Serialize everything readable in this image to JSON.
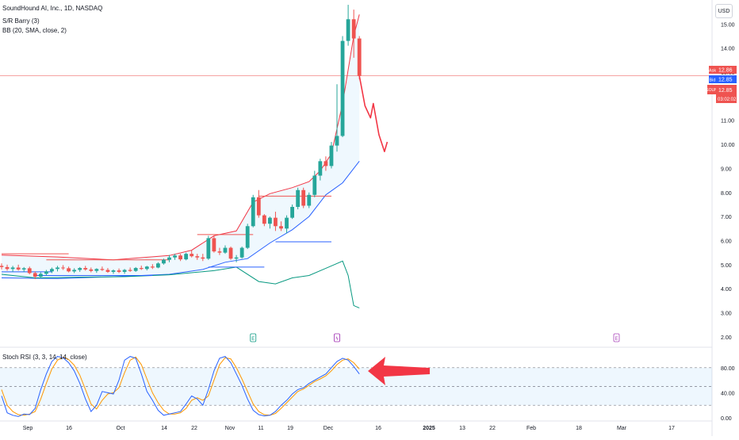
{
  "legend": {
    "symbol": "SoundHound AI, Inc., 1D, NASDAQ",
    "sr": "S/R Barry (3)",
    "bb": "BB (20, SMA, close, 2)"
  },
  "currency": "USD",
  "price_labels": {
    "ask_tag": "Ask",
    "ask": "12.86",
    "bid_tag": "Bid",
    "bid": "12.85",
    "symbol_tag": "SOUN",
    "last": "12.85",
    "countdown": "03:02:02"
  },
  "stoch_title": "Stoch RSI (3, 3, 14, 14, close)",
  "colors": {
    "up": "#26a69a",
    "down": "#ef5350",
    "bb_upper": "#f23645",
    "bb_lower": "#2962ff",
    "bb_fill": "#2196f3",
    "stoch_k": "#2962ff",
    "stoch_d": "#ff9800",
    "hline": "#ef5350",
    "annotation": "#f23645",
    "grid": "#f0f3fa"
  },
  "chart_data": [
    {
      "type": "candlestick",
      "title": "SoundHound AI, Inc., 1D, NASDAQ",
      "yaxis_ticks": [
        2.0,
        3.0,
        4.0,
        5.0,
        6.0,
        7.0,
        8.0,
        9.0,
        10.0,
        11.0,
        12.0,
        13.0,
        14.0,
        15.0
      ],
      "xaxis_ticks": [
        "Sep",
        "16",
        "Oct",
        "14",
        "22",
        "Nov",
        "11",
        "19",
        "Dec",
        "16",
        "2025",
        "13",
        "22",
        "Feb",
        "18",
        "Mar",
        "17"
      ],
      "candles": [
        {
          "o": 4.95,
          "h": 5.05,
          "l": 4.8,
          "c": 4.9
        },
        {
          "o": 4.9,
          "h": 5.0,
          "l": 4.75,
          "c": 4.82
        },
        {
          "o": 4.82,
          "h": 4.95,
          "l": 4.7,
          "c": 4.88
        },
        {
          "o": 4.88,
          "h": 5.0,
          "l": 4.75,
          "c": 4.8
        },
        {
          "o": 4.8,
          "h": 4.9,
          "l": 4.7,
          "c": 4.85
        },
        {
          "o": 4.85,
          "h": 4.92,
          "l": 4.6,
          "c": 4.65
        },
        {
          "o": 4.65,
          "h": 4.72,
          "l": 4.4,
          "c": 4.5
        },
        {
          "o": 4.5,
          "h": 4.68,
          "l": 4.45,
          "c": 4.62
        },
        {
          "o": 4.62,
          "h": 4.78,
          "l": 4.55,
          "c": 4.72
        },
        {
          "o": 4.72,
          "h": 4.88,
          "l": 4.65,
          "c": 4.82
        },
        {
          "o": 4.82,
          "h": 4.95,
          "l": 4.72,
          "c": 4.88
        },
        {
          "o": 4.88,
          "h": 4.98,
          "l": 4.78,
          "c": 4.85
        },
        {
          "o": 4.85,
          "h": 4.92,
          "l": 4.68,
          "c": 4.72
        },
        {
          "o": 4.72,
          "h": 4.85,
          "l": 4.65,
          "c": 4.78
        },
        {
          "o": 4.78,
          "h": 4.9,
          "l": 4.7,
          "c": 4.86
        },
        {
          "o": 4.86,
          "h": 4.95,
          "l": 4.75,
          "c": 4.8
        },
        {
          "o": 4.8,
          "h": 4.88,
          "l": 4.68,
          "c": 4.74
        },
        {
          "o": 4.74,
          "h": 4.85,
          "l": 4.66,
          "c": 4.82
        },
        {
          "o": 4.82,
          "h": 4.92,
          "l": 4.74,
          "c": 4.78
        },
        {
          "o": 4.78,
          "h": 4.86,
          "l": 4.66,
          "c": 4.7
        },
        {
          "o": 4.7,
          "h": 4.8,
          "l": 4.62,
          "c": 4.76
        },
        {
          "o": 4.76,
          "h": 4.84,
          "l": 4.65,
          "c": 4.7
        },
        {
          "o": 4.7,
          "h": 4.82,
          "l": 4.62,
          "c": 4.78
        },
        {
          "o": 4.78,
          "h": 4.88,
          "l": 4.7,
          "c": 4.74
        },
        {
          "o": 4.74,
          "h": 4.9,
          "l": 4.7,
          "c": 4.86
        },
        {
          "o": 4.86,
          "h": 4.96,
          "l": 4.78,
          "c": 4.82
        },
        {
          "o": 4.82,
          "h": 4.95,
          "l": 4.76,
          "c": 4.92
        },
        {
          "o": 4.92,
          "h": 5.02,
          "l": 4.82,
          "c": 4.88
        },
        {
          "o": 4.88,
          "h": 5.1,
          "l": 4.85,
          "c": 5.05
        },
        {
          "o": 5.05,
          "h": 5.25,
          "l": 5.0,
          "c": 5.2
        },
        {
          "o": 5.2,
          "h": 5.4,
          "l": 5.1,
          "c": 5.3
        },
        {
          "o": 5.3,
          "h": 5.45,
          "l": 5.2,
          "c": 5.38
        },
        {
          "o": 5.38,
          "h": 5.45,
          "l": 5.15,
          "c": 5.22
        },
        {
          "o": 5.22,
          "h": 5.5,
          "l": 5.18,
          "c": 5.45
        },
        {
          "o": 5.45,
          "h": 5.6,
          "l": 5.3,
          "c": 5.35
        },
        {
          "o": 5.35,
          "h": 5.45,
          "l": 5.2,
          "c": 5.3
        },
        {
          "o": 5.3,
          "h": 5.45,
          "l": 5.15,
          "c": 5.25
        },
        {
          "o": 5.25,
          "h": 6.2,
          "l": 5.2,
          "c": 6.1
        },
        {
          "o": 6.1,
          "h": 6.2,
          "l": 5.5,
          "c": 5.55
        },
        {
          "o": 5.55,
          "h": 5.7,
          "l": 5.4,
          "c": 5.5
        },
        {
          "o": 5.5,
          "h": 5.8,
          "l": 5.45,
          "c": 5.7
        },
        {
          "o": 5.7,
          "h": 5.75,
          "l": 5.2,
          "c": 5.25
        },
        {
          "o": 5.25,
          "h": 5.4,
          "l": 5.1,
          "c": 5.3
        },
        {
          "o": 5.3,
          "h": 5.75,
          "l": 5.25,
          "c": 5.7
        },
        {
          "o": 5.7,
          "h": 6.7,
          "l": 5.65,
          "c": 6.6
        },
        {
          "o": 6.6,
          "h": 7.9,
          "l": 6.55,
          "c": 7.8
        },
        {
          "o": 7.8,
          "h": 8.1,
          "l": 6.95,
          "c": 7.05
        },
        {
          "o": 7.05,
          "h": 7.1,
          "l": 6.6,
          "c": 6.7
        },
        {
          "o": 6.7,
          "h": 7.0,
          "l": 6.5,
          "c": 6.95
        },
        {
          "o": 6.95,
          "h": 7.2,
          "l": 6.4,
          "c": 6.6
        },
        {
          "o": 6.6,
          "h": 6.8,
          "l": 6.4,
          "c": 6.5
        },
        {
          "o": 6.5,
          "h": 7.05,
          "l": 6.3,
          "c": 6.95
        },
        {
          "o": 6.95,
          "h": 7.5,
          "l": 6.9,
          "c": 7.4
        },
        {
          "o": 7.4,
          "h": 8.2,
          "l": 7.3,
          "c": 8.1
        },
        {
          "o": 8.1,
          "h": 8.2,
          "l": 7.35,
          "c": 7.45
        },
        {
          "o": 7.45,
          "h": 8.0,
          "l": 7.35,
          "c": 7.9
        },
        {
          "o": 7.9,
          "h": 8.9,
          "l": 7.8,
          "c": 8.7
        },
        {
          "o": 8.7,
          "h": 9.4,
          "l": 8.5,
          "c": 9.3
        },
        {
          "o": 9.3,
          "h": 9.5,
          "l": 8.9,
          "c": 9.1
        },
        {
          "o": 9.1,
          "h": 10.1,
          "l": 9.0,
          "c": 9.95
        },
        {
          "o": 9.95,
          "h": 12.5,
          "l": 9.7,
          "c": 10.35
        },
        {
          "o": 10.35,
          "h": 14.5,
          "l": 10.3,
          "c": 14.3
        },
        {
          "o": 14.3,
          "h": 15.8,
          "l": 14.1,
          "c": 15.2
        },
        {
          "o": 15.2,
          "h": 15.6,
          "l": 13.6,
          "c": 14.4
        },
        {
          "o": 14.4,
          "h": 14.5,
          "l": 12.7,
          "c": 12.85
        }
      ],
      "bb_upper": [
        {
          "i": 0,
          "v": 5.4
        },
        {
          "i": 10,
          "v": 5.32
        },
        {
          "i": 20,
          "v": 5.2
        },
        {
          "i": 30,
          "v": 5.38
        },
        {
          "i": 34,
          "v": 5.6
        },
        {
          "i": 38,
          "v": 6.2
        },
        {
          "i": 42,
          "v": 6.4
        },
        {
          "i": 45,
          "v": 7.6
        },
        {
          "i": 48,
          "v": 7.95
        },
        {
          "i": 52,
          "v": 8.2
        },
        {
          "i": 55,
          "v": 8.45
        },
        {
          "i": 57,
          "v": 8.9
        },
        {
          "i": 59,
          "v": 9.6
        },
        {
          "i": 61,
          "v": 11.7
        },
        {
          "i": 63,
          "v": 14.5
        },
        {
          "i": 64,
          "v": 15.4
        }
      ],
      "bb_lower": [
        {
          "i": 0,
          "v": 4.45
        },
        {
          "i": 10,
          "v": 4.42
        },
        {
          "i": 20,
          "v": 4.5
        },
        {
          "i": 30,
          "v": 4.6
        },
        {
          "i": 36,
          "v": 4.8
        },
        {
          "i": 40,
          "v": 5.1
        },
        {
          "i": 44,
          "v": 5.25
        },
        {
          "i": 48,
          "v": 5.9
        },
        {
          "i": 52,
          "v": 6.45
        },
        {
          "i": 55,
          "v": 7.0
        },
        {
          "i": 58,
          "v": 7.9
        },
        {
          "i": 61,
          "v": 8.4
        },
        {
          "i": 64,
          "v": 9.3
        }
      ],
      "sr_lines": [
        {
          "from": 0,
          "to": 12,
          "v": 5.45,
          "color": "#ef5350"
        },
        {
          "from": 8,
          "to": 30,
          "v": 5.2,
          "color": "#ef5350"
        },
        {
          "from": 0,
          "to": 9,
          "v": 4.7,
          "color": "#2962ff"
        },
        {
          "from": 6,
          "to": 27,
          "v": 4.55,
          "color": "#2962ff"
        },
        {
          "from": 35,
          "to": 45,
          "v": 6.25,
          "color": "#ef5350"
        },
        {
          "from": 37,
          "to": 47,
          "v": 4.9,
          "color": "#2962ff"
        },
        {
          "from": 46,
          "to": 59,
          "v": 7.85,
          "color": "#ef5350"
        },
        {
          "from": 49,
          "to": 59,
          "v": 5.95,
          "color": "#2962ff"
        }
      ],
      "lower_line": [
        {
          "i": 0,
          "v": 4.6
        },
        {
          "i": 6,
          "v": 4.45
        },
        {
          "i": 14,
          "v": 4.48
        },
        {
          "i": 22,
          "v": 4.5
        },
        {
          "i": 30,
          "v": 4.58
        },
        {
          "i": 38,
          "v": 4.75
        },
        {
          "i": 42,
          "v": 4.9
        },
        {
          "i": 46,
          "v": 4.3
        },
        {
          "i": 49,
          "v": 4.2
        },
        {
          "i": 52,
          "v": 4.45
        },
        {
          "i": 55,
          "v": 4.55
        },
        {
          "i": 58,
          "v": 4.85
        },
        {
          "i": 61,
          "v": 5.15
        },
        {
          "i": 62,
          "v": 4.55
        },
        {
          "i": 63,
          "v": 3.3
        },
        {
          "i": 64,
          "v": 3.2
        }
      ],
      "drawn_projection": [
        {
          "i": 64,
          "v": 12.85
        },
        {
          "i": 65,
          "v": 11.6
        },
        {
          "i": 66,
          "v": 11.1
        },
        {
          "i": 66.5,
          "v": 11.7
        },
        {
          "i": 67.5,
          "v": 10.4
        },
        {
          "i": 68.5,
          "v": 9.7
        },
        {
          "i": 69,
          "v": 10.1
        }
      ],
      "current_price": 12.85,
      "ylim": [
        1.6,
        16.0
      ]
    },
    {
      "type": "line",
      "title": "Stoch RSI (3, 3, 14, 14, close)",
      "yaxis_ticks": [
        0.0,
        40.0,
        80.0
      ],
      "bands": [
        20,
        50,
        80
      ],
      "series": [
        {
          "name": "K",
          "values": [
            35,
            8,
            4,
            2,
            6,
            5,
            15,
            45,
            70,
            90,
            98,
            96,
            88,
            75,
            55,
            30,
            10,
            20,
            42,
            40,
            38,
            60,
            92,
            98,
            95,
            70,
            42,
            28,
            12,
            4,
            6,
            8,
            10,
            22,
            35,
            30,
            20,
            45,
            75,
            95,
            98,
            88,
            70,
            52,
            30,
            12,
            5,
            3,
            4,
            10,
            20,
            28,
            38,
            45,
            48,
            55,
            60,
            65,
            70,
            80,
            90,
            95,
            92,
            82,
            70
          ]
        },
        {
          "name": "D",
          "values": [
            45,
            20,
            10,
            5,
            4,
            6,
            10,
            30,
            55,
            78,
            92,
            97,
            93,
            84,
            68,
            45,
            22,
            14,
            28,
            38,
            40,
            48,
            72,
            92,
            97,
            85,
            62,
            40,
            24,
            12,
            6,
            6,
            8,
            15,
            28,
            32,
            28,
            35,
            60,
            85,
            96,
            94,
            80,
            62,
            42,
            22,
            10,
            5,
            4,
            7,
            15,
            24,
            33,
            42,
            46,
            52,
            58,
            62,
            67,
            75,
            85,
            92,
            94,
            88,
            78
          ]
        }
      ],
      "ylim": [
        0,
        100
      ]
    }
  ],
  "event_markers": [
    {
      "i": 45,
      "letter": "E",
      "color": "#089981"
    },
    {
      "i": 60,
      "letter": "ϟ",
      "color": "#9c27b0"
    },
    {
      "i": 110,
      "letter": "E",
      "color": "#ab47bc"
    }
  ]
}
